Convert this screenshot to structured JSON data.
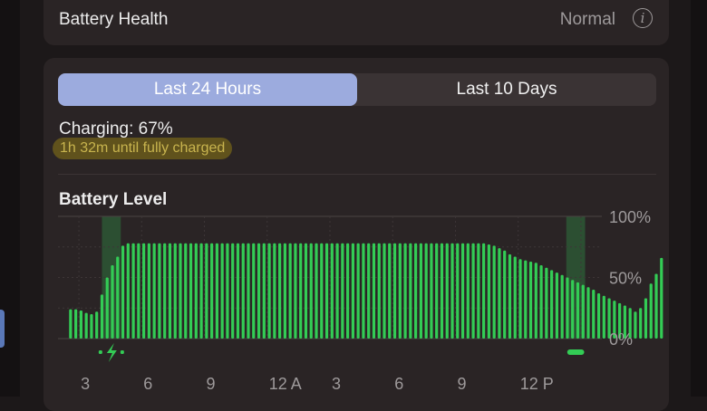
{
  "battery_health": {
    "label": "Battery Health",
    "value": "Normal",
    "info_glyph": "i"
  },
  "tabs": [
    {
      "label": "Last 24 Hours",
      "selected": true
    },
    {
      "label": "Last 10 Days",
      "selected": false
    }
  ],
  "status": {
    "charging": "Charging: 67%",
    "time_to_full": "1h 32m until fully charged"
  },
  "chart_title": "Battery Level",
  "colors": {
    "bar": "#33cc55",
    "charging_band": "#2c4f32",
    "tab_active": "#9cabde",
    "highlight": "#8c7816"
  },
  "chart_data": {
    "type": "bar",
    "title": "Battery Level",
    "y_ticks": [
      "100%",
      "50%",
      "0%"
    ],
    "ylim": [
      0,
      100
    ],
    "x_tick_labels": [
      "3",
      "6",
      "9",
      "12 A",
      "3",
      "6",
      "9",
      "12 P"
    ],
    "charging_periods": [
      [
        4.1,
        5.0
      ],
      [
        26.3,
        27.2
      ]
    ],
    "charging_icons": [
      "lightning-bolt-icon",
      "charging-bar-icon"
    ],
    "bar_start_hour": 2.6,
    "bar_interval_hours": 0.25,
    "values": [
      24,
      24,
      23,
      21,
      20,
      22,
      36,
      50,
      60,
      67,
      76,
      78,
      78,
      78,
      78,
      78,
      78,
      78,
      78,
      78,
      78,
      78,
      78,
      78,
      78,
      78,
      78,
      78,
      78,
      78,
      78,
      78,
      78,
      78,
      78,
      78,
      78,
      78,
      78,
      78,
      78,
      78,
      78,
      78,
      78,
      78,
      78,
      78,
      78,
      78,
      78,
      78,
      78,
      78,
      78,
      78,
      78,
      78,
      78,
      78,
      78,
      78,
      78,
      78,
      78,
      78,
      78,
      78,
      78,
      78,
      78,
      78,
      78,
      78,
      78,
      78,
      78,
      78,
      78,
      78,
      77,
      76,
      74,
      72,
      69,
      67,
      65,
      64,
      63,
      62,
      60,
      58,
      56,
      54,
      52,
      50,
      48,
      46,
      44,
      42,
      40,
      37,
      35,
      33,
      31,
      29,
      27,
      25,
      22,
      25,
      33,
      45,
      53,
      66
    ]
  }
}
